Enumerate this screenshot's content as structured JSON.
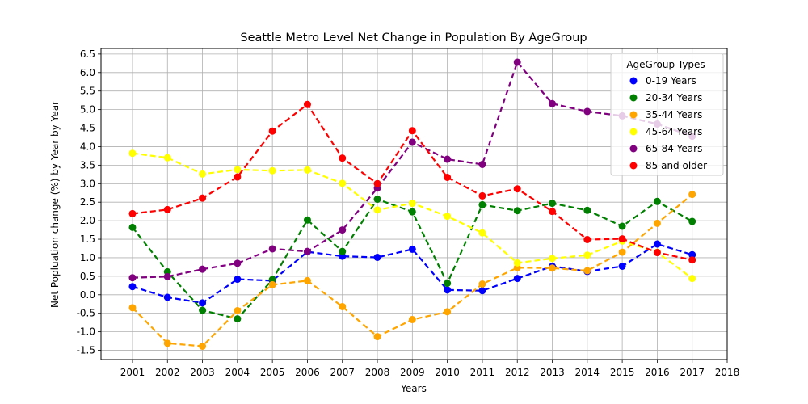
{
  "chart_data": {
    "type": "line",
    "title": "Seattle Metro Level Net Change in Population By AgeGroup",
    "xlabel": "Years",
    "ylabel": "Net Popluation change (%) by Year by Year",
    "x": [
      2001,
      2002,
      2003,
      2004,
      2005,
      2006,
      2007,
      2008,
      2009,
      2010,
      2011,
      2012,
      2013,
      2014,
      2015,
      2016,
      2017
    ],
    "x_ticks": [
      "2001",
      "2002",
      "2003",
      "2004",
      "2005",
      "2006",
      "2007",
      "2008",
      "2009",
      "2010",
      "2011",
      "2012",
      "2013",
      "2014",
      "2015",
      "2016",
      "2017",
      "2018"
    ],
    "y_ticks": [
      "6.5",
      "6.0",
      "5.5",
      "5.0",
      "4.5",
      "4.0",
      "3.5",
      "3.0",
      "2.5",
      "2.0",
      "1.5",
      "1.0",
      "0.5",
      "0.0",
      "-0.5",
      "-1.0",
      "-1.5"
    ],
    "xlim": [
      2000.1,
      2018.0
    ],
    "ylim": [
      -1.75,
      6.65
    ],
    "grid": true,
    "legend_title": "AgeGroup Types",
    "legend_position": "top-right",
    "series": [
      {
        "name": "0-19 Years",
        "color": "#0000ff",
        "values": [
          0.22,
          -0.07,
          -0.22,
          0.42,
          0.38,
          1.16,
          1.04,
          1.01,
          1.23,
          0.13,
          0.11,
          0.44,
          0.77,
          0.63,
          0.77,
          1.37,
          1.08
        ]
      },
      {
        "name": "20-34 Years",
        "color": "#008000",
        "values": [
          1.82,
          0.62,
          -0.42,
          -0.65,
          0.41,
          2.02,
          1.17,
          2.58,
          2.24,
          0.31,
          2.43,
          2.27,
          2.47,
          2.28,
          1.85,
          2.52,
          1.98
        ]
      },
      {
        "name": "35-44 Years",
        "color": "#ffa500",
        "values": [
          -0.35,
          -1.31,
          -1.39,
          -0.43,
          0.27,
          0.38,
          -0.32,
          -1.13,
          -0.67,
          -0.46,
          0.29,
          0.73,
          0.72,
          0.65,
          1.15,
          1.93,
          2.71
        ]
      },
      {
        "name": "45-64 Years",
        "color": "#ffff00",
        "values": [
          3.82,
          3.7,
          3.26,
          3.38,
          3.35,
          3.37,
          3.01,
          2.29,
          2.47,
          2.12,
          1.67,
          0.86,
          0.98,
          1.07,
          1.45,
          1.15,
          0.44
        ]
      },
      {
        "name": "65-84 Years",
        "color": "#800080",
        "values": [
          0.46,
          0.49,
          0.69,
          0.85,
          1.24,
          1.17,
          1.75,
          2.88,
          4.12,
          3.66,
          3.52,
          6.28,
          5.16,
          4.95,
          4.83,
          4.61,
          4.28
        ]
      },
      {
        "name": "85 and older",
        "color": "#ff0000",
        "values": [
          2.19,
          2.3,
          2.61,
          3.18,
          4.42,
          5.14,
          3.69,
          3.0,
          4.43,
          3.17,
          2.67,
          2.86,
          2.25,
          1.49,
          1.51,
          1.14,
          0.94
        ]
      }
    ]
  }
}
